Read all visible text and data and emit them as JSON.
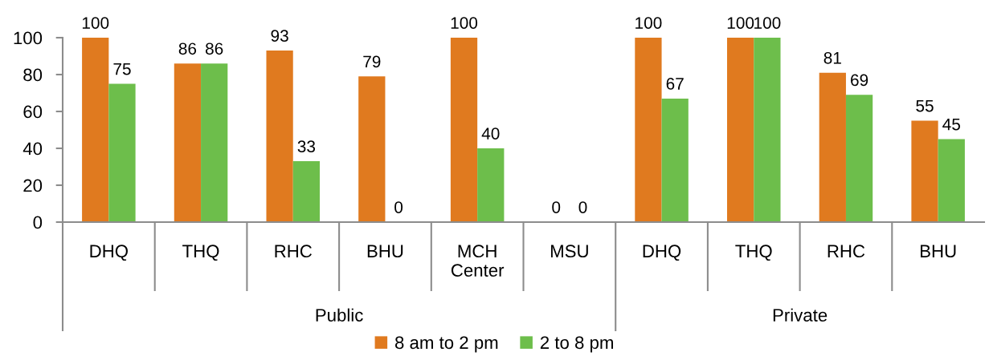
{
  "chart_data": {
    "type": "bar",
    "categories": [
      "DHQ",
      "THQ",
      "RHC",
      "BHU",
      "MCH Center",
      "MSU",
      "DHQ",
      "THQ",
      "RHC",
      "BHU"
    ],
    "series": [
      {
        "name": "8 am to 2 pm",
        "color": "#e07a1f",
        "values": [
          100,
          86,
          93,
          79,
          100,
          0,
          100,
          100,
          81,
          55
        ]
      },
      {
        "name": "2 to 8 pm",
        "color": "#6dbe4b",
        "values": [
          75,
          86,
          33,
          0,
          40,
          0,
          67,
          100,
          69,
          45
        ]
      }
    ],
    "ylim": [
      0,
      100
    ],
    "yticks": [
      0,
      20,
      40,
      60,
      80,
      100
    ],
    "annotations": [
      "Public",
      "Private"
    ],
    "data_labels": true,
    "legend": "bottom"
  }
}
